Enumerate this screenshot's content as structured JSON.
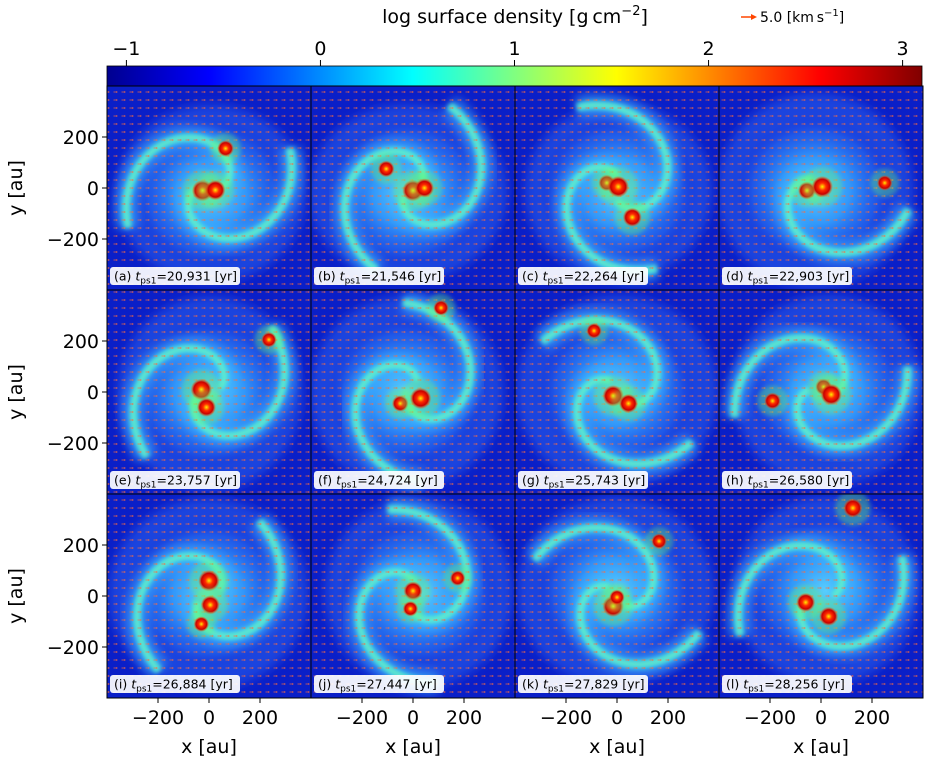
{
  "colorbar": {
    "label": "log surface density [g cm^-2]",
    "label_main": "log surface density [g cm",
    "label_exp": "−2",
    "label_close": "]",
    "ticks": [
      "−1",
      "0",
      "1",
      "2",
      "3"
    ],
    "tick_values": [
      -1,
      0,
      1,
      2,
      3
    ],
    "range": [
      -1.1,
      3.1
    ],
    "colormap": "jet",
    "colors": [
      "#00008f",
      "#0000ff",
      "#0080ff",
      "#00ffff",
      "#80ff80",
      "#ffff00",
      "#ff8000",
      "#ff0000",
      "#800000"
    ]
  },
  "velocity_key": {
    "label": "5.0 [km s⁻¹]",
    "label_main": "5.0 [km s",
    "label_exp": "−1",
    "label_close": "]",
    "color": "#ff4500"
  },
  "axes": {
    "xlabel": "x [au]",
    "ylabel": "y [au]",
    "x_ticks": [
      "−200",
      "0",
      "200"
    ],
    "x_tick_values": [
      -200,
      0,
      200
    ],
    "y_ticks": [
      "200",
      "0",
      "−200"
    ],
    "y_tick_values": [
      200,
      0,
      -200
    ],
    "range": [
      -400,
      400
    ]
  },
  "time_unit": "[yr]",
  "time_symbol": "t",
  "time_subscript": "ps1",
  "panels": [
    {
      "label": "(a)",
      "time": "20,931",
      "arms": 2,
      "rotation": 0,
      "stars": [
        [
          -25,
          -10,
          1.0
        ],
        [
          25,
          -8,
          0.9
        ],
        [
          65,
          155,
          0.6
        ]
      ]
    },
    {
      "label": "(b)",
      "time": "21,546",
      "arms": 2,
      "rotation": 40,
      "stars": [
        [
          0,
          -10,
          1.0
        ],
        [
          45,
          0,
          0.8
        ],
        [
          -105,
          75,
          0.6
        ]
      ]
    },
    {
      "label": "(c)",
      "time": "22,264",
      "arms": 2,
      "rotation": 90,
      "stars": [
        [
          -40,
          20,
          0.6
        ],
        [
          5,
          5,
          1.0
        ],
        [
          60,
          -115,
          0.8
        ]
      ]
    },
    {
      "label": "(d)",
      "time": "22,903",
      "arms": 1,
      "rotation": 140,
      "stars": [
        [
          -55,
          -10,
          0.7
        ],
        [
          5,
          5,
          1.0
        ],
        [
          250,
          20,
          0.5
        ]
      ]
    },
    {
      "label": "(e)",
      "time": "23,757",
      "arms": 2,
      "rotation": 200,
      "stars": [
        [
          -30,
          10,
          1.0
        ],
        [
          -10,
          -60,
          0.8
        ],
        [
          235,
          205,
          0.5
        ]
      ]
    },
    {
      "label": "(f)",
      "time": "24,724",
      "arms": 2,
      "rotation": 250,
      "stars": [
        [
          -50,
          -45,
          0.6
        ],
        [
          30,
          -25,
          1.0
        ],
        [
          110,
          330,
          0.5
        ]
      ]
    },
    {
      "label": "(g)",
      "time": "25,743",
      "arms": 2,
      "rotation": 300,
      "stars": [
        [
          -15,
          -15,
          1.0
        ],
        [
          45,
          -45,
          0.8
        ],
        [
          -90,
          240,
          0.5
        ]
      ]
    },
    {
      "label": "(h)",
      "time": "26,580",
      "arms": 2,
      "rotation": 350,
      "stars": [
        [
          10,
          20,
          0.6
        ],
        [
          40,
          -10,
          1.0
        ],
        [
          -190,
          -35,
          0.6
        ]
      ]
    },
    {
      "label": "(i)",
      "time": "26,884",
      "arms": 2,
      "rotation": 30,
      "stars": [
        [
          0,
          60,
          1.0
        ],
        [
          5,
          -35,
          0.8
        ],
        [
          -30,
          -110,
          0.5
        ]
      ]
    },
    {
      "label": "(j)",
      "time": "27,447",
      "arms": 2,
      "rotation": 80,
      "stars": [
        [
          0,
          20,
          0.8
        ],
        [
          -10,
          -50,
          0.5
        ],
        [
          175,
          70,
          0.5
        ]
      ]
    },
    {
      "label": "(k)",
      "time": "27,829",
      "arms": 2,
      "rotation": 130,
      "stars": [
        [
          -15,
          -40,
          1.0
        ],
        [
          0,
          -5,
          0.5
        ],
        [
          165,
          215,
          0.5
        ]
      ]
    },
    {
      "label": "(l)",
      "time": "28,256",
      "arms": 2,
      "rotation": 180,
      "stars": [
        [
          -60,
          -25,
          0.8
        ],
        [
          30,
          -80,
          0.8
        ],
        [
          125,
          345,
          0.8
        ]
      ]
    }
  ]
}
